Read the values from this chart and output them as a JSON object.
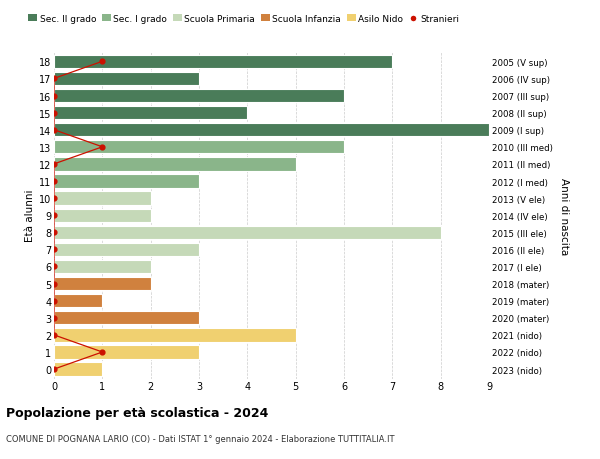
{
  "ages": [
    18,
    17,
    16,
    15,
    14,
    13,
    12,
    11,
    10,
    9,
    8,
    7,
    6,
    5,
    4,
    3,
    2,
    1,
    0
  ],
  "right_labels": [
    "2005 (V sup)",
    "2006 (IV sup)",
    "2007 (III sup)",
    "2008 (II sup)",
    "2009 (I sup)",
    "2010 (III med)",
    "2011 (II med)",
    "2012 (I med)",
    "2013 (V ele)",
    "2014 (IV ele)",
    "2015 (III ele)",
    "2016 (II ele)",
    "2017 (I ele)",
    "2018 (mater)",
    "2019 (mater)",
    "2020 (mater)",
    "2021 (nido)",
    "2022 (nido)",
    "2023 (nido)"
  ],
  "bar_values": [
    7,
    3,
    6,
    4,
    9,
    6,
    5,
    3,
    2,
    2,
    8,
    3,
    2,
    2,
    1,
    3,
    5,
    3,
    1
  ],
  "bar_colors": [
    "#4a7c59",
    "#4a7c59",
    "#4a7c59",
    "#4a7c59",
    "#4a7c59",
    "#8ab58a",
    "#8ab58a",
    "#8ab58a",
    "#c5d9b8",
    "#c5d9b8",
    "#c5d9b8",
    "#c5d9b8",
    "#c5d9b8",
    "#d0813e",
    "#d0813e",
    "#d0813e",
    "#f0d070",
    "#f0d070",
    "#f0d070"
  ],
  "stranieri_x": [
    1,
    0,
    0,
    0,
    0,
    1,
    0,
    0,
    0,
    0,
    0,
    0,
    0,
    0,
    0,
    0,
    0,
    1,
    0
  ],
  "legend_labels": [
    "Sec. II grado",
    "Sec. I grado",
    "Scuola Primaria",
    "Scuola Infanzia",
    "Asilo Nido",
    "Stranieri"
  ],
  "legend_colors": [
    "#4a7c59",
    "#8ab58a",
    "#c5d9b8",
    "#d0813e",
    "#f0d070",
    "#cc1100"
  ],
  "ylabel_left": "Età alunni",
  "ylabel_right": "Anni di nascita",
  "title": "Popolazione per età scolastica - 2024",
  "subtitle": "COMUNE DI POGNANA LARIO (CO) - Dati ISTAT 1° gennaio 2024 - Elaborazione TUTTITALIA.IT",
  "xlim": [
    0,
    9
  ],
  "xticks": [
    0,
    1,
    2,
    3,
    4,
    5,
    6,
    7,
    8,
    9
  ],
  "background_color": "#ffffff",
  "grid_color": "#cccccc"
}
